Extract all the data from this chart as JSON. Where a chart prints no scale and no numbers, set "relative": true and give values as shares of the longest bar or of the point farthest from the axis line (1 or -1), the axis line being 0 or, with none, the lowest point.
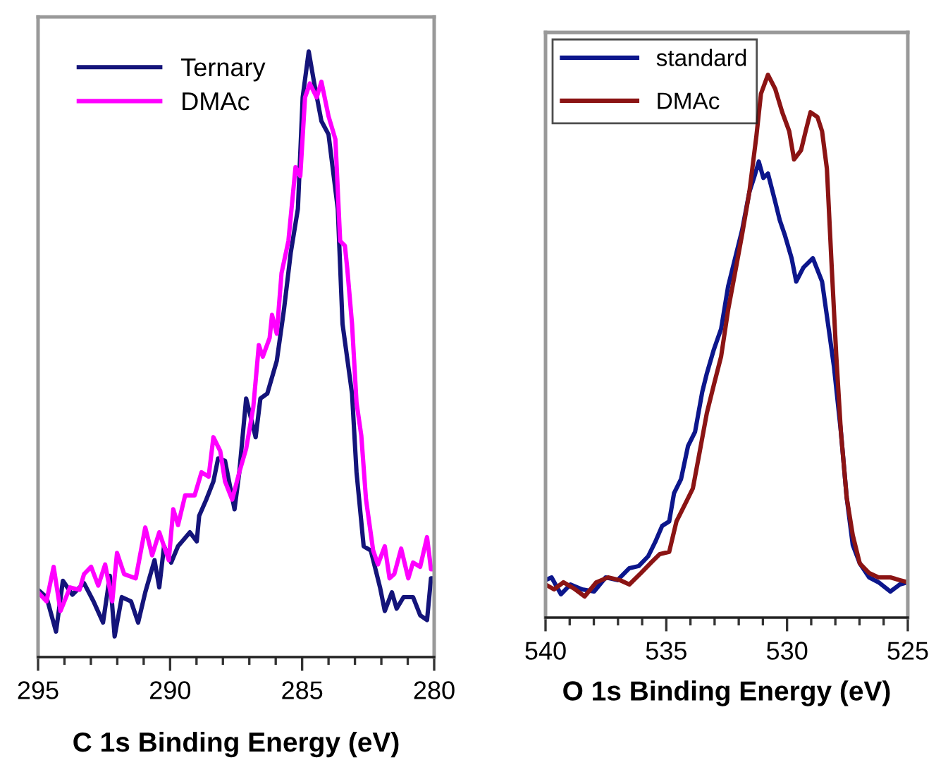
{
  "chart_data": [
    {
      "type": "line",
      "relative": true,
      "xlabel": "C 1s Binding Energy (eV)",
      "xlim": [
        295,
        280
      ],
      "xticks": [
        295,
        {
          "value": 294,
          "label": null
        },
        {
          "value": 293,
          "label": null
        },
        {
          "value": 292,
          "label": null
        },
        {
          "value": 291,
          "label": null
        },
        290,
        {
          "value": 289,
          "label": null
        },
        {
          "value": 288,
          "label": null
        },
        {
          "value": 287,
          "label": null
        },
        {
          "value": 286,
          "label": null
        },
        285,
        {
          "value": 284,
          "label": null
        },
        {
          "value": 283,
          "label": null
        },
        {
          "value": 282,
          "label": null
        },
        {
          "value": 281,
          "label": null
        },
        280
      ],
      "tick_labels": "x",
      "legend": "top left",
      "grid": false,
      "marker": "none",
      "line_style": "solid",
      "series": [
        {
          "name": "Ternary",
          "color": "#14147a",
          "x": [
            295.0,
            294.68,
            294.32,
            294.06,
            293.7,
            293.26,
            292.9,
            292.54,
            292.28,
            292.1,
            291.83,
            291.48,
            291.21,
            290.94,
            290.59,
            290.41,
            290.23,
            289.96,
            289.7,
            289.25,
            288.99,
            288.9,
            288.63,
            288.36,
            288.18,
            287.92,
            287.56,
            287.38,
            287.12,
            286.76,
            286.58,
            286.32,
            285.96,
            285.69,
            285.43,
            285.16,
            284.98,
            284.75,
            284.54,
            284.27,
            284.0,
            283.65,
            283.47,
            283.11,
            282.94,
            282.67,
            282.4,
            282.05,
            281.87,
            281.6,
            281.42,
            281.16,
            280.8,
            280.53,
            280.27,
            280.12,
            280.0
          ],
          "values": [
            0.111,
            0.099,
            0.042,
            0.126,
            0.103,
            0.122,
            0.092,
            0.057,
            0.134,
            0.034,
            0.099,
            0.092,
            0.057,
            0.107,
            0.16,
            0.115,
            0.183,
            0.156,
            0.183,
            0.206,
            0.191,
            0.233,
            0.26,
            0.29,
            0.328,
            0.324,
            0.244,
            0.305,
            0.427,
            0.363,
            0.427,
            0.435,
            0.489,
            0.573,
            0.668,
            0.74,
            0.924,
            1.0,
            0.947,
            0.885,
            0.863,
            0.74,
            0.55,
            0.435,
            0.305,
            0.183,
            0.176,
            0.115,
            0.076,
            0.107,
            0.08,
            0.099,
            0.099,
            0.069,
            0.061,
            0.13,
            0.13
          ]
        },
        {
          "name": "DMAc",
          "color": "#ff00ff",
          "x": [
            295.0,
            294.68,
            294.41,
            294.15,
            293.79,
            293.43,
            293.26,
            292.99,
            292.72,
            292.46,
            292.19,
            292.01,
            291.74,
            291.3,
            290.94,
            290.68,
            290.41,
            290.05,
            289.88,
            289.7,
            289.43,
            289.07,
            288.81,
            288.54,
            288.36,
            288.1,
            287.92,
            287.65,
            287.38,
            287.12,
            286.85,
            286.64,
            286.49,
            286.23,
            286.14,
            285.96,
            285.78,
            285.52,
            285.25,
            285.07,
            284.89,
            284.71,
            284.45,
            284.27,
            284.0,
            283.74,
            283.56,
            283.38,
            283.29,
            283.11,
            282.94,
            282.76,
            282.58,
            282.31,
            282.13,
            281.87,
            281.69,
            281.51,
            281.25,
            280.98,
            280.8,
            280.53,
            280.27,
            280.12,
            280.0
          ],
          "values": [
            0.107,
            0.092,
            0.149,
            0.076,
            0.115,
            0.111,
            0.137,
            0.149,
            0.118,
            0.153,
            0.092,
            0.172,
            0.137,
            0.13,
            0.214,
            0.168,
            0.206,
            0.16,
            0.244,
            0.218,
            0.267,
            0.267,
            0.305,
            0.298,
            0.363,
            0.34,
            0.29,
            0.26,
            0.305,
            0.344,
            0.412,
            0.515,
            0.496,
            0.527,
            0.565,
            0.534,
            0.634,
            0.687,
            0.809,
            0.794,
            0.924,
            0.947,
            0.924,
            0.95,
            0.893,
            0.855,
            0.687,
            0.679,
            0.641,
            0.55,
            0.42,
            0.366,
            0.26,
            0.176,
            0.153,
            0.183,
            0.13,
            0.137,
            0.179,
            0.13,
            0.156,
            0.149,
            0.198,
            0.145,
            0.145
          ]
        }
      ]
    },
    {
      "type": "line",
      "relative": true,
      "xlabel": "O 1s Binding Energy (eV)",
      "xlim": [
        540,
        525
      ],
      "xticks": [
        540,
        {
          "value": 539,
          "label": null
        },
        {
          "value": 538,
          "label": null
        },
        {
          "value": 537,
          "label": null
        },
        {
          "value": 536,
          "label": null
        },
        535,
        {
          "value": 534,
          "label": null
        },
        {
          "value": 533,
          "label": null
        },
        {
          "value": 532,
          "label": null
        },
        {
          "value": 531,
          "label": null
        },
        530,
        {
          "value": 529,
          "label": null
        },
        {
          "value": 528,
          "label": null
        },
        {
          "value": 527,
          "label": null
        },
        {
          "value": 526,
          "label": null
        },
        525
      ],
      "tick_labels": "x",
      "legend": "top left",
      "grid": false,
      "marker": "none",
      "line_style": "solid",
      "series": [
        {
          "name": "standard",
          "color": "#0c168c",
          "x": [
            540.0,
            539.75,
            539.36,
            538.97,
            538.48,
            537.99,
            537.51,
            537.02,
            536.53,
            536.14,
            535.75,
            535.46,
            535.17,
            534.88,
            534.68,
            534.39,
            534.1,
            533.81,
            533.51,
            533.32,
            533.03,
            532.73,
            532.44,
            532.15,
            531.86,
            531.56,
            531.37,
            531.17,
            530.98,
            530.79,
            530.49,
            530.3,
            530.1,
            529.81,
            529.62,
            529.32,
            528.93,
            528.55,
            528.25,
            528.06,
            527.77,
            527.53,
            527.28,
            526.99,
            526.6,
            526.21,
            525.72,
            525.33,
            525.0
          ],
          "values": [
            0.069,
            0.074,
            0.043,
            0.061,
            0.052,
            0.048,
            0.074,
            0.069,
            0.091,
            0.095,
            0.113,
            0.139,
            0.169,
            0.177,
            0.229,
            0.255,
            0.316,
            0.342,
            0.416,
            0.45,
            0.494,
            0.532,
            0.61,
            0.662,
            0.714,
            0.784,
            0.81,
            0.84,
            0.81,
            0.818,
            0.766,
            0.732,
            0.706,
            0.662,
            0.619,
            0.645,
            0.662,
            0.619,
            0.524,
            0.463,
            0.342,
            0.221,
            0.134,
            0.1,
            0.074,
            0.065,
            0.048,
            0.061,
            0.065
          ]
        },
        {
          "name": "DMAc",
          "color": "#8b1414",
          "x": [
            540.0,
            539.65,
            539.26,
            538.77,
            538.38,
            537.9,
            537.41,
            536.92,
            536.53,
            536.05,
            535.66,
            535.27,
            534.88,
            534.58,
            534.19,
            533.9,
            533.61,
            533.32,
            533.03,
            532.73,
            532.44,
            532.15,
            531.86,
            531.56,
            531.27,
            531.08,
            530.79,
            530.49,
            530.2,
            529.91,
            529.71,
            529.42,
            529.23,
            529.03,
            528.74,
            528.55,
            528.35,
            528.16,
            527.96,
            527.77,
            527.53,
            527.28,
            526.99,
            526.6,
            526.21,
            525.72,
            525.33,
            525.0
          ],
          "values": [
            0.061,
            0.052,
            0.065,
            0.052,
            0.039,
            0.065,
            0.074,
            0.069,
            0.061,
            0.082,
            0.1,
            0.117,
            0.121,
            0.177,
            0.212,
            0.238,
            0.307,
            0.377,
            0.429,
            0.481,
            0.567,
            0.636,
            0.706,
            0.784,
            0.887,
            0.965,
            1.0,
            0.974,
            0.931,
            0.896,
            0.844,
            0.861,
            0.896,
            0.931,
            0.922,
            0.896,
            0.827,
            0.654,
            0.481,
            0.342,
            0.221,
            0.152,
            0.1,
            0.082,
            0.074,
            0.074,
            0.069,
            0.065
          ]
        }
      ]
    }
  ]
}
